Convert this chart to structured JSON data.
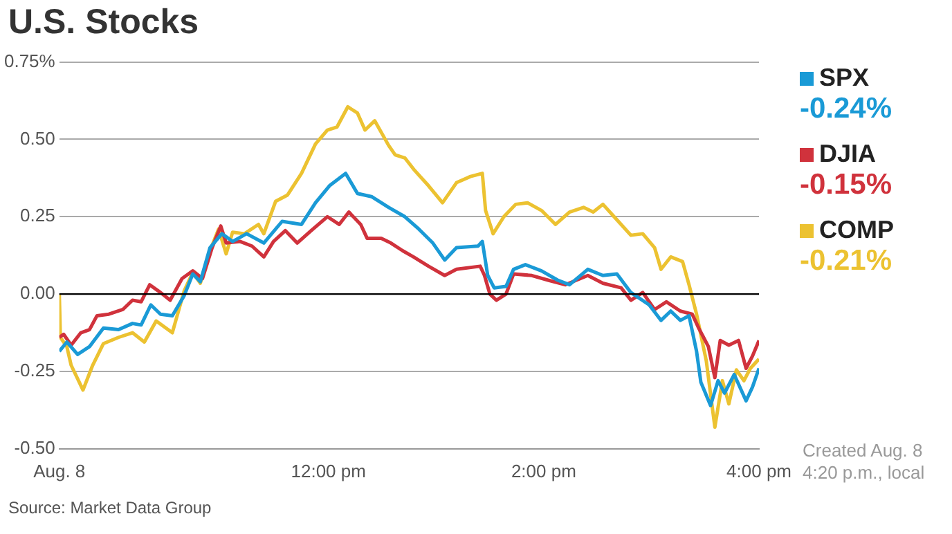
{
  "chart_data": {
    "type": "line",
    "title": "U.S. Stocks",
    "annotations": [
      "-0.24%",
      "-0.15%",
      "-0.21%",
      "Created Aug. 8 4:20 p.m., local",
      "Source: Market Data Group"
    ],
    "xlim": [
      9.5,
      16
    ],
    "xticks": [
      {
        "value": 9.5,
        "label": "Aug. 8"
      },
      {
        "value": 12,
        "label": "12:00 pm"
      },
      {
        "value": 14,
        "label": "2:00 pm"
      },
      {
        "value": 16,
        "label": "4:00 pm"
      }
    ],
    "ylim": [
      -0.5,
      0.75
    ],
    "yticks": [
      {
        "value": -0.5,
        "label": "-0.50"
      },
      {
        "value": -0.25,
        "label": "-0.25"
      },
      {
        "value": 0,
        "label": "0.00"
      },
      {
        "value": 0.25,
        "label": "0.25"
      },
      {
        "value": 0.5,
        "label": "0.50"
      },
      {
        "value": 0.75,
        "label": "0.75%"
      }
    ],
    "grid": "y",
    "legend": "right",
    "marker": "none",
    "line_style": "solid",
    "ref_lines": [
      {
        "axis": "y",
        "value": 0,
        "color": "#000000"
      }
    ],
    "series": [
      {
        "name": "SPX",
        "color": "#1a9ad6",
        "x": [
          9.5,
          9.57,
          9.67,
          9.78,
          9.91,
          10.05,
          10.18,
          10.26,
          10.35,
          10.44,
          10.55,
          10.66,
          10.74,
          10.81,
          10.9,
          11.01,
          11.11,
          11.24,
          11.4,
          11.57,
          11.75,
          11.88,
          12.01,
          12.16,
          12.27,
          12.4,
          12.56,
          12.71,
          12.84,
          12.97,
          13.08,
          13.19,
          13.39,
          13.43,
          13.48,
          13.54,
          13.65,
          13.72,
          13.83,
          13.98,
          14.13,
          14.24,
          14.41,
          14.55,
          14.68,
          14.81,
          14.98,
          15.09,
          15.18,
          15.27,
          15.35,
          15.42,
          15.46,
          15.55,
          15.62,
          15.68,
          15.77,
          15.88,
          15.94,
          16
        ],
        "values": [
          -0.185,
          -0.155,
          -0.195,
          -0.17,
          -0.11,
          -0.115,
          -0.095,
          -0.1,
          -0.035,
          -0.065,
          -0.07,
          -0.005,
          0.065,
          0.04,
          0.15,
          0.195,
          0.17,
          0.195,
          0.165,
          0.235,
          0.225,
          0.295,
          0.35,
          0.39,
          0.325,
          0.315,
          0.28,
          0.25,
          0.21,
          0.165,
          0.11,
          0.15,
          0.155,
          0.17,
          0.06,
          0.02,
          0.025,
          0.08,
          0.095,
          0.075,
          0.045,
          0.03,
          0.08,
          0.06,
          0.065,
          0.005,
          -0.035,
          -0.085,
          -0.055,
          -0.085,
          -0.07,
          -0.185,
          -0.285,
          -0.36,
          -0.28,
          -0.32,
          -0.26,
          -0.345,
          -0.3,
          -0.24
        ]
      },
      {
        "name": "DJIA",
        "color": "#d0323c",
        "x": [
          9.5,
          9.54,
          9.61,
          9.7,
          9.78,
          9.85,
          9.96,
          10.09,
          10.18,
          10.26,
          10.34,
          10.44,
          10.53,
          10.64,
          10.74,
          10.83,
          10.92,
          11,
          11.05,
          11.18,
          11.29,
          11.4,
          11.49,
          11.6,
          11.71,
          11.84,
          11.99,
          12.1,
          12.19,
          12.3,
          12.36,
          12.49,
          12.58,
          12.69,
          12.79,
          12.93,
          13.08,
          13.19,
          13.41,
          13.45,
          13.5,
          13.56,
          13.65,
          13.72,
          13.89,
          14.04,
          14.2,
          14.41,
          14.55,
          14.72,
          14.81,
          14.92,
          15.03,
          15.14,
          15.27,
          15.38,
          15.44,
          15.53,
          15.59,
          15.64,
          15.72,
          15.81,
          15.88,
          15.94,
          16
        ],
        "values": [
          -0.14,
          -0.13,
          -0.165,
          -0.125,
          -0.115,
          -0.07,
          -0.065,
          -0.05,
          -0.02,
          -0.025,
          0.03,
          0.005,
          -0.02,
          0.05,
          0.075,
          0.05,
          0.15,
          0.22,
          0.165,
          0.17,
          0.155,
          0.12,
          0.17,
          0.205,
          0.165,
          0.205,
          0.25,
          0.225,
          0.265,
          0.225,
          0.18,
          0.18,
          0.165,
          0.14,
          0.12,
          0.09,
          0.06,
          0.08,
          0.09,
          0.06,
          0,
          -0.02,
          0,
          0.065,
          0.06,
          0.045,
          0.03,
          0.06,
          0.035,
          0.02,
          -0.02,
          0.005,
          -0.05,
          -0.025,
          -0.055,
          -0.065,
          -0.11,
          -0.17,
          -0.27,
          -0.15,
          -0.165,
          -0.15,
          -0.24,
          -0.2,
          -0.15
        ]
      },
      {
        "name": "COMP",
        "color": "#ecc231",
        "x": [
          9.5,
          9.51,
          9.57,
          9.61,
          9.72,
          9.81,
          9.91,
          10.05,
          10.18,
          10.29,
          10.4,
          10.55,
          10.66,
          10.74,
          10.81,
          10.9,
          10.98,
          11.05,
          11.11,
          11.22,
          11.35,
          11.4,
          11.51,
          11.62,
          11.75,
          11.88,
          11.99,
          12.08,
          12.18,
          12.27,
          12.34,
          12.43,
          12.56,
          12.62,
          12.71,
          12.8,
          12.93,
          13.06,
          13.19,
          13.32,
          13.43,
          13.46,
          13.53,
          13.63,
          13.74,
          13.85,
          13.98,
          14.11,
          14.24,
          14.37,
          14.46,
          14.55,
          14.68,
          14.81,
          14.92,
          15.03,
          15.09,
          15.18,
          15.29,
          15.35,
          15.42,
          15.51,
          15.59,
          15.66,
          15.72,
          15.79,
          15.86,
          15.92,
          16
        ],
        "values": [
          0,
          -0.14,
          -0.17,
          -0.23,
          -0.31,
          -0.23,
          -0.16,
          -0.14,
          -0.125,
          -0.155,
          -0.087,
          -0.125,
          0.01,
          0.07,
          0.035,
          0.14,
          0.21,
          0.13,
          0.2,
          0.195,
          0.225,
          0.195,
          0.3,
          0.32,
          0.39,
          0.485,
          0.53,
          0.54,
          0.605,
          0.585,
          0.53,
          0.56,
          0.48,
          0.45,
          0.44,
          0.4,
          0.35,
          0.295,
          0.36,
          0.38,
          0.39,
          0.27,
          0.195,
          0.25,
          0.29,
          0.295,
          0.27,
          0.225,
          0.265,
          0.28,
          0.265,
          0.29,
          0.24,
          0.19,
          0.195,
          0.15,
          0.08,
          0.12,
          0.105,
          0.03,
          -0.065,
          -0.215,
          -0.43,
          -0.28,
          -0.355,
          -0.245,
          -0.28,
          -0.24,
          -0.21
        ]
      }
    ]
  }
}
